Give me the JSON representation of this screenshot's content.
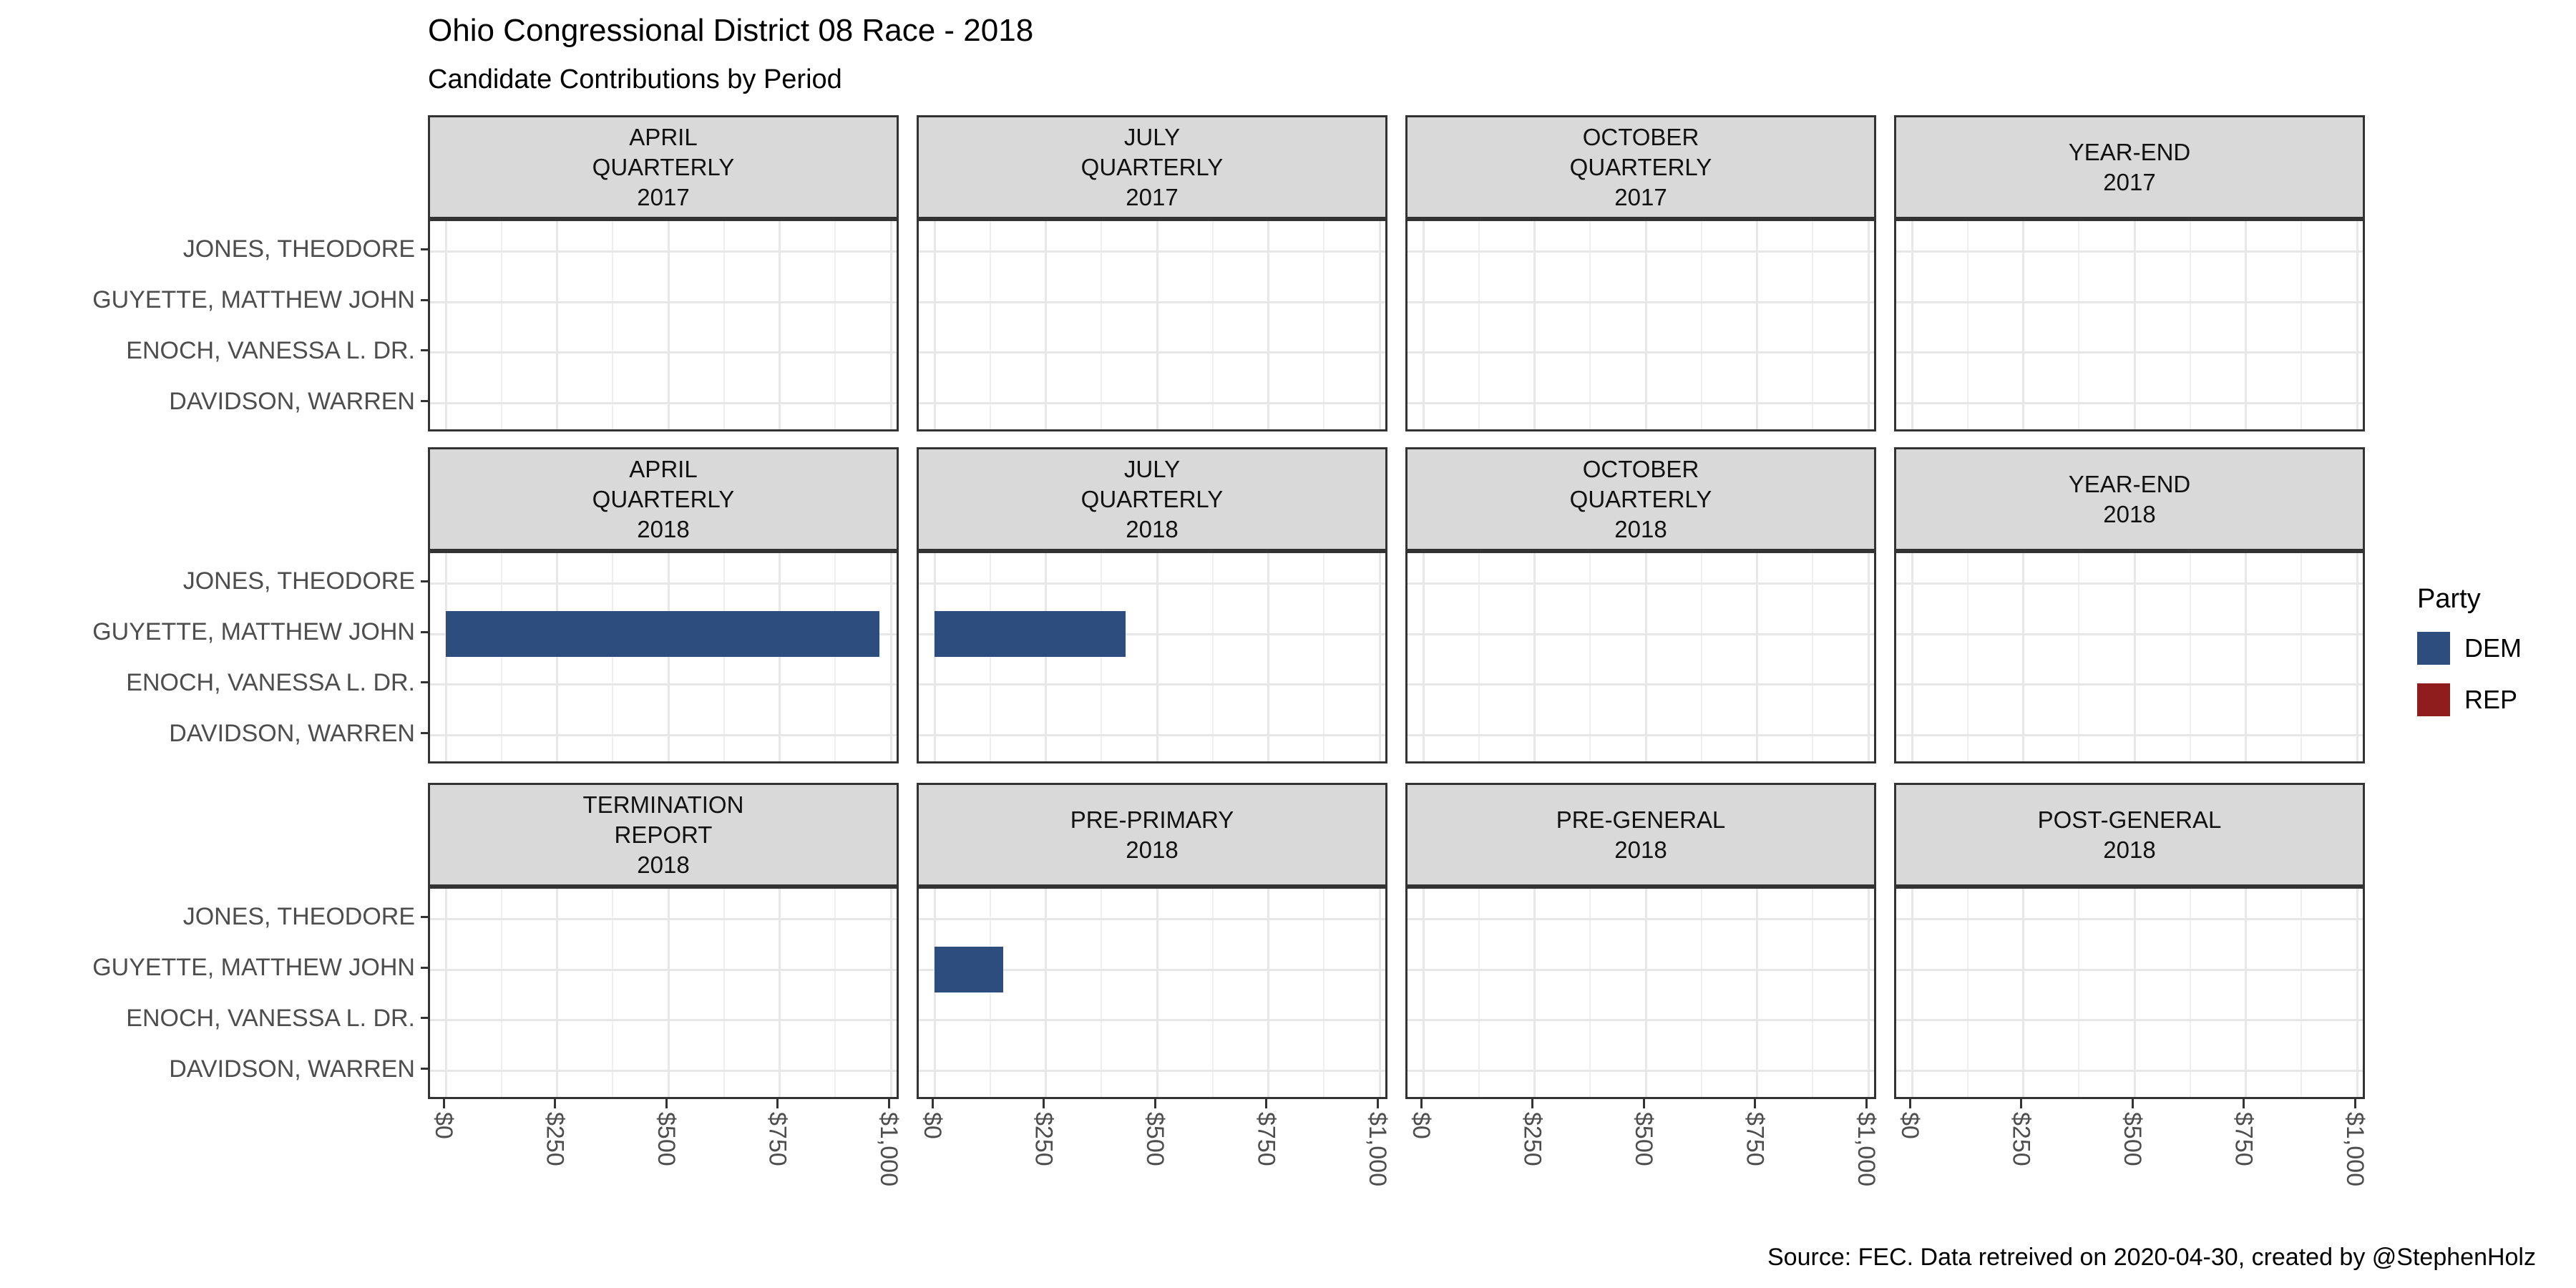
{
  "title": "Ohio Congressional District 08 Race - 2018",
  "subtitle": "Candidate Contributions by Period",
  "caption": "Source: FEC. Data retreived on 2020-04-30, created by @StephenHolz",
  "legend": {
    "title": "Party",
    "items": [
      {
        "label": "DEM",
        "color": "#2C4D7E"
      },
      {
        "label": "REP",
        "color": "#8F1D1D"
      }
    ]
  },
  "colors": {
    "strip_background": "#D9D9D9",
    "panel_border": "#333333",
    "gridline_major": "#E7E7E7",
    "gridline_minor": "#EFEFEF",
    "axis_text": "#4D4D4D",
    "tick": "#333333",
    "background": "#FFFFFF"
  },
  "chart_data": {
    "type": "bar",
    "orientation": "horizontal",
    "title": "Ohio Congressional District 08 Race - 2018",
    "subtitle": "Candidate Contributions by Period",
    "xlabel": "",
    "ylabel": "",
    "xlim": [
      0,
      1000
    ],
    "x_ticks": [
      "$0",
      "$250",
      "$500",
      "$750",
      "$1,000"
    ],
    "x_tick_values": [
      0,
      250,
      500,
      750,
      1000
    ],
    "x_minor_gridlines": [
      125,
      375,
      625,
      875
    ],
    "grid": "major+minor vertical, major horizontal at category centers",
    "legend_position": "right",
    "candidates": [
      "JONES, THEODORE",
      "GUYETTE, MATTHEW JOHN",
      "ENOCH, VANESSA L. DR.",
      "DAVIDSON, WARREN"
    ],
    "facet_grid": {
      "rows": 3,
      "cols": 4
    },
    "facets": [
      {
        "period": "APRIL QUARTERLY 2017",
        "lines": [
          "APRIL",
          "QUARTERLY",
          "2017"
        ],
        "bars": []
      },
      {
        "period": "JULY QUARTERLY 2017",
        "lines": [
          "JULY",
          "QUARTERLY",
          "2017"
        ],
        "bars": []
      },
      {
        "period": "OCTOBER QUARTERLY 2017",
        "lines": [
          "OCTOBER",
          "QUARTERLY",
          "2017"
        ],
        "bars": []
      },
      {
        "period": "YEAR-END 2017",
        "lines": [
          "YEAR-END",
          "2017"
        ],
        "bars": []
      },
      {
        "period": "APRIL QUARTERLY 2018",
        "lines": [
          "APRIL",
          "QUARTERLY",
          "2018"
        ],
        "bars": [
          {
            "candidate": "GUYETTE, MATTHEW JOHN",
            "party": "DEM",
            "value": 975
          }
        ]
      },
      {
        "period": "JULY QUARTERLY 2018",
        "lines": [
          "JULY",
          "QUARTERLY",
          "2018"
        ],
        "bars": [
          {
            "candidate": "GUYETTE, MATTHEW JOHN",
            "party": "DEM",
            "value": 430
          }
        ]
      },
      {
        "period": "OCTOBER QUARTERLY 2018",
        "lines": [
          "OCTOBER",
          "QUARTERLY",
          "2018"
        ],
        "bars": []
      },
      {
        "period": "YEAR-END 2018",
        "lines": [
          "YEAR-END",
          "2018"
        ],
        "bars": []
      },
      {
        "period": "TERMINATION REPORT 2018",
        "lines": [
          "TERMINATION",
          "REPORT",
          "2018"
        ],
        "bars": []
      },
      {
        "period": "PRE-PRIMARY 2018",
        "lines": [
          "PRE-PRIMARY",
          "2018"
        ],
        "bars": [
          {
            "candidate": "GUYETTE, MATTHEW JOHN",
            "party": "DEM",
            "value": 155
          }
        ]
      },
      {
        "period": "PRE-GENERAL 2018",
        "lines": [
          "PRE-GENERAL",
          "2018"
        ],
        "bars": []
      },
      {
        "period": "POST-GENERAL 2018",
        "lines": [
          "POST-GENERAL",
          "2018"
        ],
        "bars": []
      }
    ]
  }
}
